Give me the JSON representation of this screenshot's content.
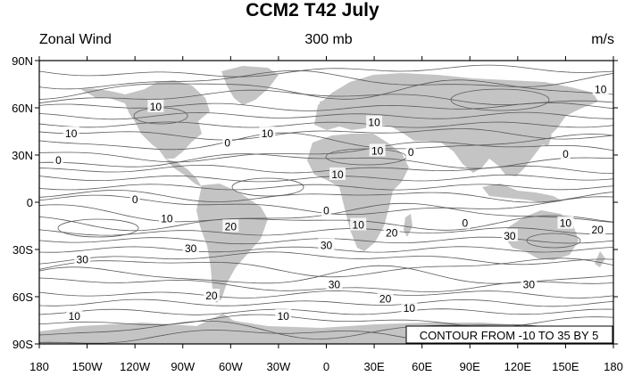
{
  "title": "CCM2 T42 July",
  "subtitle_left": "Zonal Wind",
  "subtitle_center": "300 mb",
  "subtitle_right": "m/s",
  "info_box": "CONTOUR FROM -10 TO 35 BY 5",
  "colors": {
    "land": "#c4c4c4",
    "contour": "#5a5a5a",
    "frame": "#000000",
    "background": "#ffffff"
  },
  "chart_data": {
    "type": "contour",
    "variable": "Zonal Wind",
    "level": "300 mb",
    "units": "m/s",
    "contour_min": -10,
    "contour_max": 35,
    "contour_interval": 5,
    "xlim": [
      -180,
      180
    ],
    "ylim": [
      -90,
      90
    ],
    "x_ticks": [
      -180,
      -150,
      -120,
      -90,
      -60,
      -30,
      0,
      30,
      60,
      90,
      120,
      150,
      180
    ],
    "x_tick_labels": [
      "180",
      "150W",
      "120W",
      "90W",
      "60W",
      "30W",
      "0",
      "30E",
      "60E",
      "90E",
      "120E",
      "150E",
      "180"
    ],
    "y_ticks": [
      90,
      60,
      30,
      0,
      -30,
      -60,
      -90
    ],
    "y_tick_labels": [
      "90N",
      "60N",
      "30N",
      "0",
      "30S",
      "60S",
      "90S"
    ],
    "contour_labels": [
      {
        "text": "10",
        "lon": 172,
        "lat": 71
      },
      {
        "text": "10",
        "lon": -107,
        "lat": 60
      },
      {
        "text": "10",
        "lon": -160,
        "lat": 43
      },
      {
        "text": "10",
        "lon": -37,
        "lat": 43
      },
      {
        "text": "10",
        "lon": 30,
        "lat": 50
      },
      {
        "text": "0",
        "lon": -168,
        "lat": 26
      },
      {
        "text": "0",
        "lon": -62,
        "lat": 37
      },
      {
        "text": "10",
        "lon": 32,
        "lat": 32
      },
      {
        "text": "0",
        "lon": 53,
        "lat": 31
      },
      {
        "text": "0",
        "lon": 150,
        "lat": 30
      },
      {
        "text": "10",
        "lon": 7,
        "lat": 17
      },
      {
        "text": "0",
        "lon": -120,
        "lat": 1
      },
      {
        "text": "0",
        "lon": 0,
        "lat": -6
      },
      {
        "text": "10",
        "lon": -100,
        "lat": -11
      },
      {
        "text": "10",
        "lon": 20,
        "lat": -15
      },
      {
        "text": "0",
        "lon": 87,
        "lat": -14
      },
      {
        "text": "10",
        "lon": 150,
        "lat": -14
      },
      {
        "text": "20",
        "lon": -60,
        "lat": -16
      },
      {
        "text": "20",
        "lon": 41,
        "lat": -20
      },
      {
        "text": "30",
        "lon": 115,
        "lat": -22
      },
      {
        "text": "20",
        "lon": 170,
        "lat": -18
      },
      {
        "text": "30",
        "lon": -85,
        "lat": -30
      },
      {
        "text": "30",
        "lon": 0,
        "lat": -28
      },
      {
        "text": "30",
        "lon": -153,
        "lat": -37
      },
      {
        "text": "30",
        "lon": 5,
        "lat": -53
      },
      {
        "text": "30",
        "lon": 127,
        "lat": -53
      },
      {
        "text": "20",
        "lon": -72,
        "lat": -60
      },
      {
        "text": "20",
        "lon": 37,
        "lat": -62
      },
      {
        "text": "10",
        "lon": 52,
        "lat": -68
      },
      {
        "text": "10",
        "lon": -158,
        "lat": -73
      },
      {
        "text": "10",
        "lon": -27,
        "lat": -73
      }
    ]
  }
}
